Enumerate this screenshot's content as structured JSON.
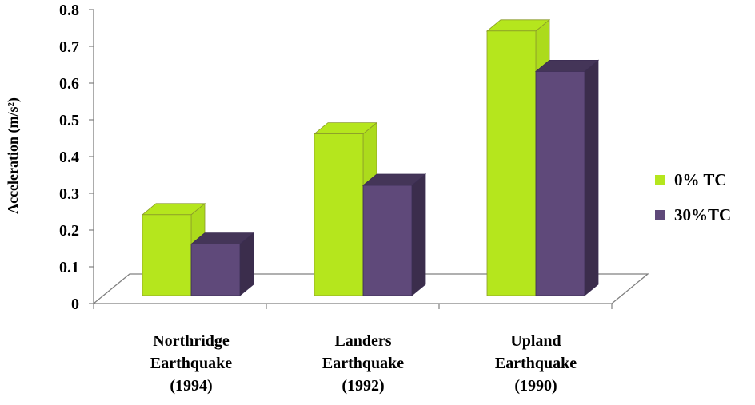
{
  "chart_data": {
    "type": "bar",
    "style": "3d-clustered-column",
    "categories": [
      [
        "Northridge",
        "Earthquake",
        "(1994)"
      ],
      [
        "Landers",
        "Earthquake",
        "(1992)"
      ],
      [
        "Upland",
        "Earthquake",
        "(1990)"
      ]
    ],
    "series": [
      {
        "name": "0% TC",
        "values": [
          0.22,
          0.44,
          0.72
        ],
        "color": "#b5e61d"
      },
      {
        "name": "30%TC",
        "values": [
          0.14,
          0.3,
          0.61
        ],
        "color": "#5f497a"
      }
    ],
    "ylabel": "Acceleration (m/s²)",
    "ylim": [
      0,
      0.8
    ],
    "yticks": [
      "0",
      "0.1",
      "0.2",
      "0.3",
      "0.4",
      "0.5",
      "0.6",
      "0.7",
      "0.8"
    ],
    "grid": false,
    "legend_position": "right"
  }
}
